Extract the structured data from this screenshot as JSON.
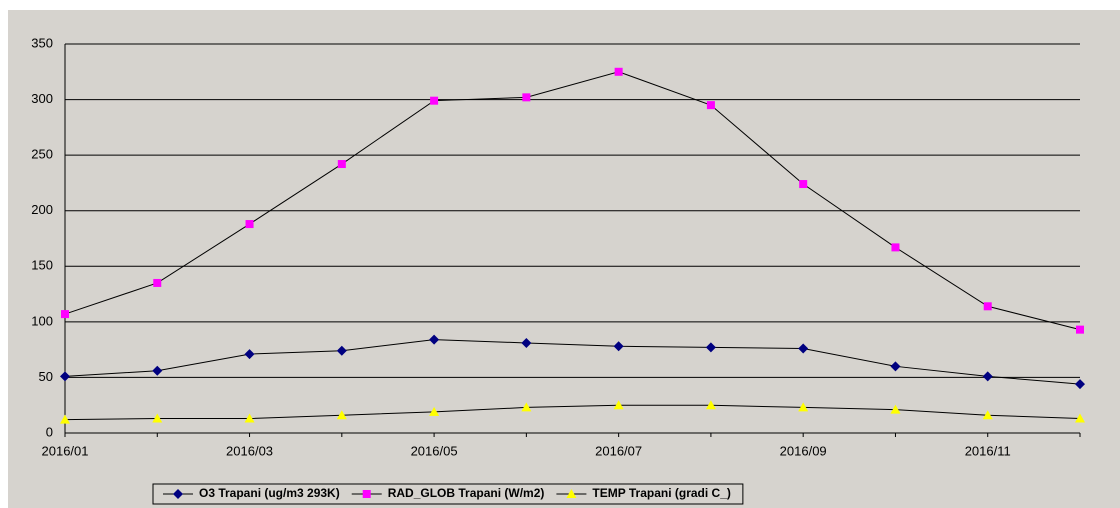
{
  "chart_data": {
    "type": "line",
    "categories": [
      "2016/01",
      null,
      "2016/03",
      null,
      "2016/05",
      null,
      "2016/07",
      null,
      "2016/09",
      null,
      "2016/11",
      null
    ],
    "series": [
      {
        "name": "O3 Trapani (ug/m3 293K)",
        "color": "#000080",
        "marker": "diamond",
        "values": [
          51,
          56,
          71,
          74,
          84,
          81,
          78,
          77,
          76,
          60,
          51,
          44
        ]
      },
      {
        "name": "RAD_GLOB Trapani (W/m2)",
        "color": "#ff00ff",
        "marker": "square",
        "values": [
          107,
          135,
          188,
          242,
          299,
          302,
          325,
          295,
          224,
          167,
          114,
          93
        ]
      },
      {
        "name": "TEMP Trapani (gradi C_)",
        "color": "#ffff00",
        "marker": "triangle",
        "values": [
          12,
          13,
          13,
          16,
          19,
          23,
          25,
          25,
          23,
          21,
          16,
          13
        ]
      }
    ],
    "ylim": [
      0,
      350
    ],
    "yticks": [
      0,
      50,
      100,
      150,
      200,
      250,
      300,
      350
    ],
    "grid": true,
    "legend": "bottom"
  }
}
